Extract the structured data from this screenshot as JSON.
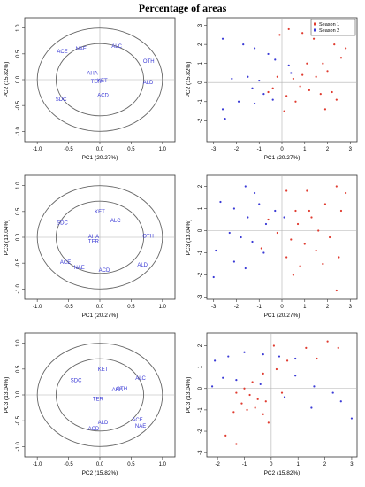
{
  "title": "Percentage of areas",
  "legend": {
    "season1": "Season 1",
    "season2": "Season 2"
  },
  "colors": {
    "season1": "#e03b2f",
    "season2": "#3a3ad6",
    "var_label": "#3a3ad6",
    "circle": "#666666",
    "axisline": "#b0b0b0"
  },
  "chart_data": [
    {
      "type": "scatter",
      "subtype": "correlation-circle",
      "xlabel": "PC1 (20.27%)",
      "ylabel": "PC2 (15.82%)",
      "xlim": [
        -1.2,
        1.2
      ],
      "ylim": [
        -1.2,
        1.2
      ],
      "xticks": [
        "-1.0",
        "-0.5",
        "0.0",
        "0.5",
        "1.0"
      ],
      "yticks": [
        "-1.0",
        "-0.5",
        "0.0",
        "0.5",
        "1.0"
      ],
      "circles": [
        1.0,
        0.7
      ],
      "points": [
        {
          "label": "NAE",
          "x": -0.3,
          "y": 0.6
        },
        {
          "label": "ACE",
          "x": -0.6,
          "y": 0.55
        },
        {
          "label": "ALC",
          "x": 0.27,
          "y": 0.65
        },
        {
          "label": "OTH",
          "x": 0.78,
          "y": 0.36
        },
        {
          "label": "AHA",
          "x": -0.12,
          "y": 0.13
        },
        {
          "label": "TER",
          "x": -0.06,
          "y": -0.03
        },
        {
          "label": "KET",
          "x": 0.04,
          "y": -0.02
        },
        {
          "label": "ALD",
          "x": 0.77,
          "y": -0.05
        },
        {
          "label": "ACD",
          "x": 0.05,
          "y": -0.3
        },
        {
          "label": "SDC",
          "x": -0.62,
          "y": -0.38
        }
      ]
    },
    {
      "type": "scatter",
      "xlabel": "PC1 (20.27%)",
      "ylabel": "PC2 (15.82%)",
      "xlim": [
        -3.3,
        3.3
      ],
      "ylim": [
        -3.1,
        3.4
      ],
      "xticks": [
        "-3",
        "-2",
        "-1",
        "0",
        "1",
        "2",
        "3"
      ],
      "yticks": [
        "-2",
        "-1",
        "0",
        "1",
        "2",
        "3"
      ],
      "legend_position": "top-right",
      "series": [
        {
          "name": "Season 1",
          "points": [
            [
              0.3,
              2.8
            ],
            [
              -0.1,
              2.5
            ],
            [
              0.9,
              2.6
            ],
            [
              1.4,
              2.3
            ],
            [
              2.3,
              2.0
            ],
            [
              2.8,
              1.8
            ],
            [
              1.8,
              1.0
            ],
            [
              2.6,
              1.3
            ],
            [
              1.1,
              1.0
            ],
            [
              0.9,
              0.4
            ],
            [
              1.5,
              0.3
            ],
            [
              2.0,
              0.6
            ],
            [
              0.5,
              0.2
            ],
            [
              0.8,
              -0.2
            ],
            [
              1.2,
              -0.4
            ],
            [
              1.7,
              -0.6
            ],
            [
              2.2,
              -0.5
            ],
            [
              0.2,
              -0.7
            ],
            [
              -0.2,
              0.3
            ],
            [
              -0.4,
              -0.3
            ],
            [
              0.6,
              -1.0
            ],
            [
              1.9,
              -1.4
            ],
            [
              2.4,
              -0.9
            ],
            [
              0.1,
              -1.5
            ],
            [
              -0.6,
              -0.5
            ]
          ]
        },
        {
          "name": "Season 2",
          "points": [
            [
              -2.6,
              2.3
            ],
            [
              -1.7,
              2.0
            ],
            [
              -1.2,
              1.8
            ],
            [
              -0.6,
              1.5
            ],
            [
              -0.3,
              1.2
            ],
            [
              -1.5,
              0.3
            ],
            [
              -1.0,
              0.1
            ],
            [
              -1.3,
              -0.3
            ],
            [
              -0.8,
              -0.6
            ],
            [
              -1.9,
              -1.0
            ],
            [
              -2.6,
              -1.4
            ],
            [
              -2.5,
              -1.9
            ],
            [
              -1.2,
              -1.1
            ],
            [
              -0.4,
              -0.9
            ],
            [
              0.4,
              0.5
            ],
            [
              -2.2,
              0.2
            ],
            [
              0.3,
              0.9
            ]
          ]
        }
      ]
    },
    {
      "type": "scatter",
      "subtype": "correlation-circle",
      "xlabel": "PC1 (20.27%)",
      "ylabel": "PC3 (13.04%)",
      "xlim": [
        -1.2,
        1.2
      ],
      "ylim": [
        -1.2,
        1.2
      ],
      "xticks": [
        "-1.0",
        "-0.5",
        "0.0",
        "0.5",
        "1.0"
      ],
      "yticks": [
        "-1.0",
        "-0.5",
        "0.0",
        "0.5",
        "1.0"
      ],
      "circles": [
        1.0,
        0.7
      ],
      "points": [
        {
          "label": "KET",
          "x": 0.0,
          "y": 0.5
        },
        {
          "label": "ALC",
          "x": 0.25,
          "y": 0.33
        },
        {
          "label": "SDC",
          "x": -0.6,
          "y": 0.28
        },
        {
          "label": "OTH",
          "x": 0.77,
          "y": 0.03
        },
        {
          "label": "AHA",
          "x": -0.1,
          "y": 0.02
        },
        {
          "label": "TER",
          "x": -0.1,
          "y": -0.08
        },
        {
          "label": "ACE",
          "x": -0.55,
          "y": -0.48
        },
        {
          "label": "NAE",
          "x": -0.33,
          "y": -0.58
        },
        {
          "label": "ACD",
          "x": 0.07,
          "y": -0.63
        },
        {
          "label": "ALD",
          "x": 0.68,
          "y": -0.53
        }
      ]
    },
    {
      "type": "scatter",
      "xlabel": "PC1 (20.27%)",
      "ylabel": "PC3 (13.04%)",
      "xlim": [
        -3.3,
        3.3
      ],
      "ylim": [
        -3.1,
        2.5
      ],
      "xticks": [
        "-3",
        "-2",
        "-1",
        "0",
        "1",
        "2",
        "3"
      ],
      "yticks": [
        "-3",
        "-2",
        "-1",
        "0",
        "1",
        "2"
      ],
      "series": [
        {
          "name": "Season 1",
          "points": [
            [
              0.2,
              1.8
            ],
            [
              1.1,
              1.8
            ],
            [
              2.4,
              2.0
            ],
            [
              2.8,
              1.7
            ],
            [
              1.9,
              1.2
            ],
            [
              2.6,
              0.9
            ],
            [
              1.3,
              0.6
            ],
            [
              0.7,
              0.3
            ],
            [
              1.6,
              0.0
            ],
            [
              2.1,
              -0.3
            ],
            [
              0.4,
              -0.4
            ],
            [
              1.0,
              -0.6
            ],
            [
              1.5,
              -0.9
            ],
            [
              0.2,
              -1.2
            ],
            [
              0.8,
              -1.6
            ],
            [
              1.8,
              -1.5
            ],
            [
              2.5,
              -1.2
            ],
            [
              -0.2,
              -0.1
            ],
            [
              -0.6,
              0.5
            ],
            [
              0.5,
              -2.0
            ],
            [
              2.4,
              -2.7
            ],
            [
              -0.9,
              -0.8
            ],
            [
              1.2,
              0.9
            ],
            [
              0.6,
              0.9
            ]
          ]
        },
        {
          "name": "Season 2",
          "points": [
            [
              -1.6,
              2.0
            ],
            [
              -1.2,
              1.7
            ],
            [
              -2.7,
              1.3
            ],
            [
              -2.1,
              1.0
            ],
            [
              -1.5,
              0.6
            ],
            [
              -0.7,
              0.3
            ],
            [
              -2.3,
              -0.1
            ],
            [
              -1.8,
              -0.3
            ],
            [
              -1.3,
              -0.5
            ],
            [
              -2.9,
              -0.9
            ],
            [
              -2.1,
              -1.4
            ],
            [
              -1.6,
              -1.7
            ],
            [
              -3.0,
              -2.1
            ],
            [
              -0.8,
              -1.0
            ],
            [
              -0.3,
              0.9
            ],
            [
              -1.0,
              1.2
            ],
            [
              0.1,
              0.6
            ]
          ]
        }
      ]
    },
    {
      "type": "scatter",
      "subtype": "correlation-circle",
      "xlabel": "PC2 (15.82%)",
      "ylabel": "PC3 (13.04%)",
      "xlim": [
        -1.2,
        1.2
      ],
      "ylim": [
        -1.2,
        1.2
      ],
      "xticks": [
        "-1.0",
        "-0.5",
        "0.0",
        "0.5",
        "1.0"
      ],
      "yticks": [
        "-1.0",
        "-0.5",
        "0.0",
        "0.5",
        "1.0"
      ],
      "circles": [
        1.0,
        0.7
      ],
      "points": [
        {
          "label": "KET",
          "x": 0.05,
          "y": 0.5
        },
        {
          "label": "ALC",
          "x": 0.65,
          "y": 0.33
        },
        {
          "label": "SDC",
          "x": -0.38,
          "y": 0.28
        },
        {
          "label": "AHA",
          "x": 0.28,
          "y": 0.1
        },
        {
          "label": "OTH",
          "x": 0.35,
          "y": 0.12
        },
        {
          "label": "TER",
          "x": -0.03,
          "y": -0.08
        },
        {
          "label": "ALD",
          "x": 0.05,
          "y": -0.53
        },
        {
          "label": "ACD",
          "x": -0.1,
          "y": -0.65
        },
        {
          "label": "ACE",
          "x": 0.6,
          "y": -0.48
        },
        {
          "label": "NAE",
          "x": 0.65,
          "y": -0.6
        }
      ]
    },
    {
      "type": "scatter",
      "xlabel": "PC2 (15.82%)",
      "ylabel": "PC3 (13.04%)",
      "xlim": [
        -2.4,
        3.2
      ],
      "ylim": [
        -3.2,
        2.6
      ],
      "xticks": [
        "-2",
        "-1",
        "0",
        "1",
        "2",
        "3"
      ],
      "yticks": [
        "-3",
        "-2",
        "-1",
        "0",
        "1",
        "2"
      ],
      "series": [
        {
          "name": "Season 1",
          "points": [
            [
              0.1,
              2.0
            ],
            [
              1.3,
              1.9
            ],
            [
              2.1,
              2.2
            ],
            [
              2.5,
              1.9
            ],
            [
              1.7,
              1.4
            ],
            [
              0.6,
              1.3
            ],
            [
              0.2,
              0.9
            ],
            [
              -0.3,
              0.7
            ],
            [
              -0.7,
              0.3
            ],
            [
              -1.0,
              0.0
            ],
            [
              -1.3,
              -0.2
            ],
            [
              -0.8,
              -0.3
            ],
            [
              -0.5,
              -0.5
            ],
            [
              -0.2,
              -0.6
            ],
            [
              -1.1,
              -0.7
            ],
            [
              -0.9,
              -1.0
            ],
            [
              -1.4,
              -1.1
            ],
            [
              -0.3,
              -1.2
            ],
            [
              -1.7,
              -2.2
            ],
            [
              -0.1,
              -1.6
            ],
            [
              -1.3,
              -2.6
            ],
            [
              0.4,
              -0.2
            ],
            [
              -0.6,
              -0.9
            ]
          ]
        },
        {
          "name": "Season 2",
          "points": [
            [
              -2.1,
              1.3
            ],
            [
              -1.6,
              1.5
            ],
            [
              -1.0,
              1.7
            ],
            [
              -0.3,
              1.6
            ],
            [
              0.3,
              1.5
            ],
            [
              0.9,
              1.4
            ],
            [
              -1.8,
              0.5
            ],
            [
              -1.3,
              0.4
            ],
            [
              -2.2,
              0.1
            ],
            [
              0.9,
              0.6
            ],
            [
              1.6,
              0.1
            ],
            [
              2.3,
              -0.2
            ],
            [
              2.6,
              -0.6
            ],
            [
              3.0,
              -1.4
            ],
            [
              1.5,
              -0.9
            ],
            [
              0.5,
              -0.4
            ],
            [
              -0.4,
              0.2
            ]
          ]
        }
      ]
    }
  ]
}
